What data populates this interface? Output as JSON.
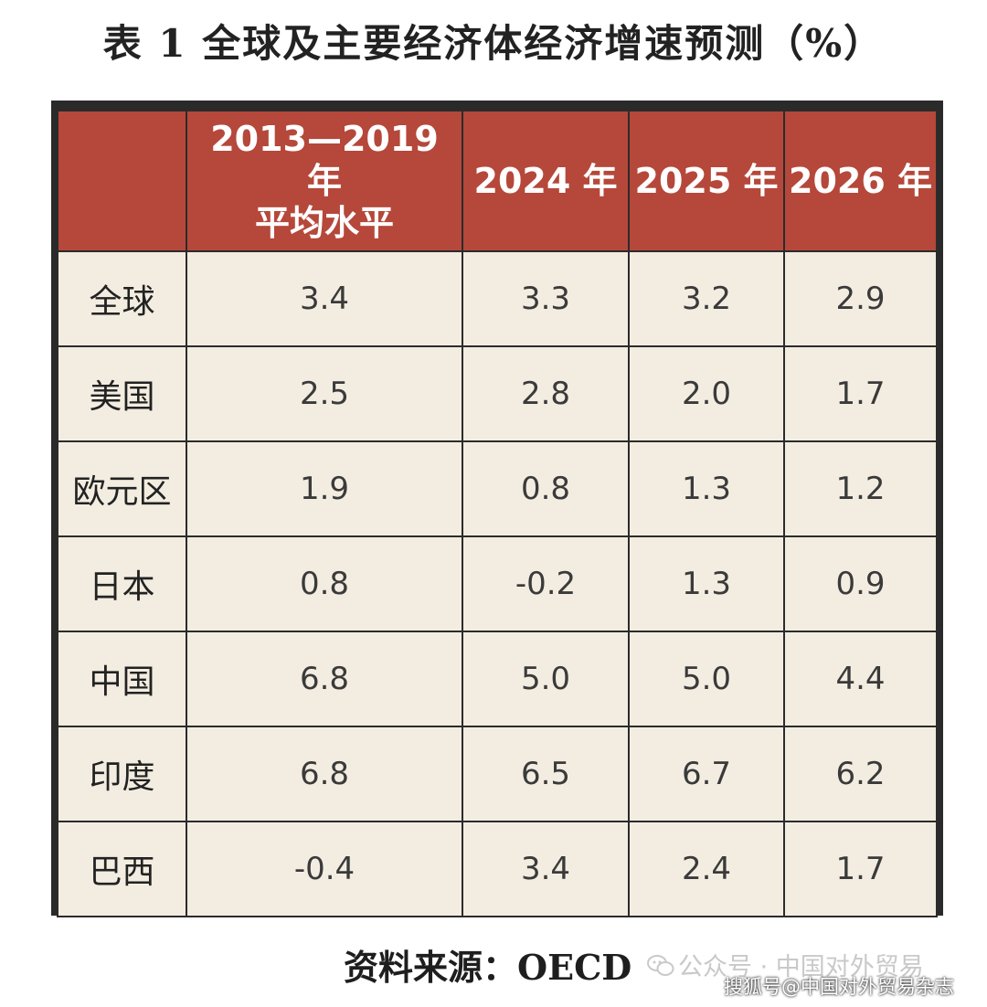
{
  "title": "表 1  全球及主要经济体经济增速预测（%）",
  "chart_data": {
    "type": "table",
    "title": "表 1  全球及主要经济体经济增速预测（%）",
    "columns": [
      "",
      "2013—2019 年\n平均水平",
      "2024 年",
      "2025 年",
      "2026 年"
    ],
    "rows": [
      {
        "label": "全球",
        "values": [
          "3.4",
          "3.3",
          "3.2",
          "2.9"
        ]
      },
      {
        "label": "美国",
        "values": [
          "2.5",
          "2.8",
          "2.0",
          "1.7"
        ]
      },
      {
        "label": "欧元区",
        "values": [
          "1.9",
          "0.8",
          "1.3",
          "1.2"
        ]
      },
      {
        "label": "日本",
        "values": [
          "0.8",
          "-0.2",
          "1.3",
          "0.9"
        ]
      },
      {
        "label": "中国",
        "values": [
          "6.8",
          "5.0",
          "5.0",
          "4.4"
        ]
      },
      {
        "label": "印度",
        "values": [
          "6.8",
          "6.5",
          "6.7",
          "6.2"
        ]
      },
      {
        "label": "巴西",
        "values": [
          "-0.4",
          "3.4",
          "2.4",
          "1.7"
        ]
      }
    ]
  },
  "source": "资料来源：OECD",
  "watermark": {
    "account": "公众号 · 中国对外贸易",
    "site": "搜狐号@中国对外贸易杂志",
    "icon": "wechat-icon"
  },
  "colors": {
    "header_bg": "#b5483a",
    "cell_bg": "#f3ede1",
    "border": "#2b2b2b"
  }
}
